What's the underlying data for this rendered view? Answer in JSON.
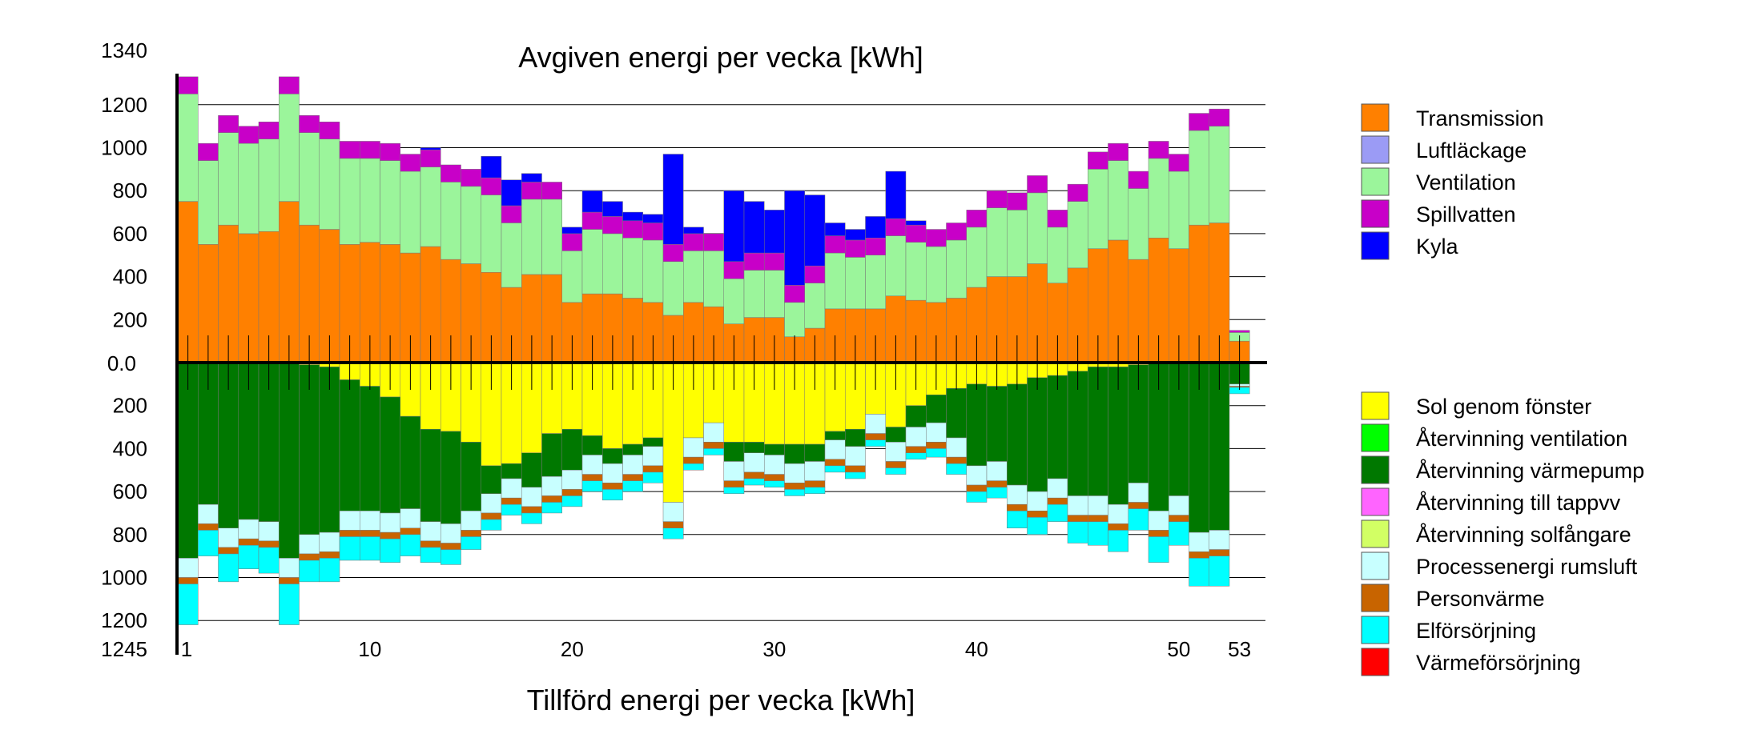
{
  "chart_data": {
    "type": "bar",
    "title": "Avgiven energi per vecka [kWh]",
    "xlabel": "Tillförd energi per vecka [kWh]",
    "y_top_label": "1340",
    "y_bottom_label": "1245",
    "y_zero_label": "0.0",
    "ylim_upper": [
      0,
      1340
    ],
    "ylim_lower": [
      0,
      1245
    ],
    "y_ticks_upper": [
      200,
      400,
      600,
      800,
      1000,
      1200
    ],
    "y_ticks_lower": [
      200,
      400,
      600,
      800,
      1000,
      1200
    ],
    "x_ticks": [
      {
        "week": 1,
        "label": "1"
      },
      {
        "week": 10,
        "label": "10"
      },
      {
        "week": 20,
        "label": "20"
      },
      {
        "week": 30,
        "label": "30"
      },
      {
        "week": 40,
        "label": "40"
      },
      {
        "week": 50,
        "label": "50"
      },
      {
        "week": 53,
        "label": "53"
      }
    ],
    "grid": true,
    "legend_placement": "right",
    "weeks": [
      1,
      2,
      3,
      4,
      5,
      6,
      7,
      8,
      9,
      10,
      11,
      12,
      13,
      14,
      15,
      16,
      17,
      18,
      19,
      20,
      21,
      22,
      23,
      24,
      25,
      26,
      27,
      28,
      29,
      30,
      31,
      32,
      33,
      34,
      35,
      36,
      37,
      38,
      39,
      40,
      41,
      42,
      43,
      44,
      45,
      46,
      47,
      48,
      49,
      50,
      51,
      52,
      53
    ],
    "series_upper": [
      {
        "name": "Transmission",
        "color": "#ff8000",
        "values": [
          750,
          550,
          640,
          600,
          610,
          750,
          640,
          620,
          550,
          560,
          550,
          510,
          540,
          480,
          460,
          420,
          350,
          410,
          410,
          280,
          320,
          320,
          300,
          280,
          220,
          280,
          260,
          180,
          210,
          210,
          120,
          160,
          250,
          250,
          250,
          310,
          290,
          280,
          300,
          350,
          400,
          400,
          460,
          370,
          440,
          530,
          570,
          480,
          580,
          530,
          640,
          650,
          100
        ]
      },
      {
        "name": "Luftläckage",
        "color": "#9b9bf5",
        "values": [
          0,
          0,
          0,
          0,
          0,
          0,
          0,
          0,
          0,
          0,
          0,
          0,
          0,
          0,
          0,
          0,
          0,
          0,
          0,
          0,
          0,
          0,
          0,
          0,
          0,
          0,
          0,
          0,
          0,
          0,
          0,
          0,
          0,
          0,
          0,
          0,
          0,
          0,
          0,
          0,
          0,
          0,
          0,
          0,
          0,
          0,
          0,
          0,
          0,
          0,
          0,
          0,
          0
        ]
      },
      {
        "name": "Ventilation",
        "color": "#9bf59b",
        "values": [
          500,
          390,
          430,
          420,
          430,
          500,
          430,
          420,
          400,
          390,
          390,
          380,
          370,
          360,
          360,
          360,
          300,
          350,
          350,
          240,
          300,
          280,
          280,
          290,
          250,
          240,
          260,
          210,
          220,
          220,
          160,
          210,
          260,
          240,
          250,
          280,
          270,
          260,
          270,
          280,
          320,
          310,
          330,
          260,
          310,
          370,
          370,
          330,
          370,
          360,
          440,
          450,
          40
        ]
      },
      {
        "name": "Spillvatten",
        "color": "#c800c8",
        "values": [
          80,
          80,
          80,
          80,
          80,
          80,
          80,
          80,
          80,
          80,
          80,
          80,
          80,
          80,
          80,
          80,
          80,
          80,
          80,
          80,
          80,
          80,
          80,
          80,
          80,
          80,
          80,
          80,
          80,
          80,
          80,
          80,
          80,
          80,
          80,
          80,
          80,
          80,
          80,
          80,
          80,
          80,
          80,
          80,
          80,
          80,
          80,
          80,
          80,
          80,
          80,
          80,
          10
        ]
      },
      {
        "name": "Kyla",
        "color": "#0000ff",
        "values": [
          0,
          0,
          0,
          0,
          0,
          0,
          0,
          0,
          0,
          0,
          0,
          0,
          10,
          0,
          0,
          100,
          120,
          40,
          0,
          30,
          100,
          70,
          40,
          40,
          420,
          30,
          0,
          330,
          240,
          200,
          440,
          330,
          60,
          50,
          100,
          220,
          20,
          0,
          0,
          0,
          0,
          0,
          0,
          0,
          0,
          0,
          0,
          0,
          0,
          0,
          0,
          0,
          0
        ]
      }
    ],
    "series_lower": [
      {
        "name": "Sol genom fönster",
        "color": "#ffff00",
        "values": [
          0,
          0,
          0,
          0,
          0,
          0,
          10,
          20,
          80,
          110,
          160,
          250,
          310,
          320,
          370,
          480,
          470,
          420,
          330,
          310,
          340,
          400,
          380,
          350,
          650,
          350,
          280,
          370,
          370,
          380,
          380,
          380,
          320,
          310,
          240,
          300,
          200,
          150,
          120,
          100,
          110,
          100,
          70,
          60,
          40,
          20,
          20,
          10,
          0,
          0,
          0,
          0,
          0
        ]
      },
      {
        "name": "Återvinning ventilation",
        "color": "#00ff00",
        "values": [
          0,
          0,
          0,
          0,
          0,
          0,
          0,
          0,
          0,
          0,
          0,
          0,
          0,
          0,
          0,
          0,
          0,
          0,
          0,
          0,
          0,
          0,
          0,
          0,
          0,
          0,
          0,
          0,
          0,
          0,
          0,
          0,
          0,
          0,
          0,
          0,
          0,
          0,
          0,
          0,
          0,
          0,
          0,
          0,
          0,
          0,
          0,
          0,
          0,
          0,
          0,
          0,
          0
        ]
      },
      {
        "name": "Återvinning värmepump",
        "color": "#007800",
        "values": [
          910,
          660,
          770,
          730,
          740,
          910,
          790,
          770,
          610,
          580,
          540,
          430,
          430,
          430,
          320,
          130,
          70,
          160,
          200,
          190,
          90,
          70,
          50,
          40,
          0,
          0,
          0,
          90,
          50,
          50,
          90,
          80,
          40,
          80,
          0,
          70,
          100,
          130,
          230,
          380,
          350,
          470,
          530,
          480,
          580,
          600,
          640,
          550,
          690,
          620,
          790,
          780,
          100
        ]
      },
      {
        "name": "Återvinning till tappvv",
        "color": "#ff64ff",
        "values": [
          0,
          0,
          0,
          0,
          0,
          0,
          0,
          0,
          0,
          0,
          0,
          0,
          0,
          0,
          0,
          0,
          0,
          0,
          0,
          0,
          0,
          0,
          0,
          0,
          0,
          0,
          0,
          0,
          0,
          0,
          0,
          0,
          0,
          0,
          0,
          0,
          0,
          0,
          0,
          0,
          0,
          0,
          0,
          0,
          0,
          0,
          0,
          0,
          0,
          0,
          0,
          0,
          0
        ]
      },
      {
        "name": "Återvinning solfångare",
        "color": "#d2ff64",
        "values": [
          0,
          0,
          0,
          0,
          0,
          0,
          0,
          0,
          0,
          0,
          0,
          0,
          0,
          0,
          0,
          0,
          0,
          0,
          0,
          0,
          0,
          0,
          0,
          0,
          0,
          0,
          0,
          0,
          0,
          0,
          0,
          0,
          0,
          0,
          0,
          0,
          0,
          0,
          0,
          0,
          0,
          0,
          0,
          0,
          0,
          0,
          0,
          0,
          0,
          0,
          0,
          0,
          0
        ]
      },
      {
        "name": "Processenergi rumsluft",
        "color": "#c8ffff",
        "values": [
          90,
          90,
          90,
          90,
          90,
          90,
          90,
          90,
          90,
          90,
          90,
          90,
          90,
          90,
          90,
          90,
          90,
          90,
          90,
          90,
          90,
          90,
          90,
          90,
          90,
          90,
          90,
          90,
          90,
          90,
          90,
          90,
          90,
          90,
          90,
          90,
          90,
          90,
          90,
          90,
          90,
          90,
          90,
          90,
          90,
          90,
          90,
          90,
          90,
          90,
          90,
          90,
          10
        ]
      },
      {
        "name": "Personvärme",
        "color": "#c86400",
        "values": [
          30,
          30,
          30,
          30,
          30,
          30,
          30,
          30,
          30,
          30,
          30,
          30,
          30,
          30,
          30,
          30,
          30,
          30,
          30,
          30,
          30,
          30,
          30,
          30,
          30,
          30,
          30,
          30,
          30,
          30,
          30,
          30,
          30,
          30,
          30,
          30,
          30,
          30,
          30,
          30,
          30,
          30,
          30,
          30,
          30,
          30,
          30,
          30,
          30,
          30,
          30,
          30,
          5
        ]
      },
      {
        "name": "Elförsörjning",
        "color": "#00ffff",
        "values": [
          190,
          120,
          130,
          110,
          120,
          190,
          100,
          110,
          110,
          110,
          110,
          100,
          70,
          70,
          60,
          50,
          50,
          50,
          50,
          50,
          50,
          50,
          50,
          50,
          50,
          30,
          30,
          30,
          30,
          30,
          30,
          30,
          30,
          30,
          30,
          30,
          30,
          40,
          50,
          50,
          50,
          80,
          80,
          80,
          100,
          110,
          100,
          100,
          120,
          110,
          130,
          140,
          30
        ]
      },
      {
        "name": "Värmeförsörjning",
        "color": "#ff0000",
        "values": [
          0,
          0,
          0,
          0,
          0,
          0,
          0,
          0,
          0,
          0,
          0,
          0,
          0,
          0,
          0,
          0,
          0,
          0,
          0,
          0,
          0,
          0,
          0,
          0,
          0,
          0,
          0,
          0,
          0,
          0,
          0,
          0,
          0,
          0,
          0,
          0,
          0,
          0,
          0,
          0,
          0,
          0,
          0,
          0,
          0,
          0,
          0,
          0,
          0,
          0,
          0,
          0,
          0
        ]
      }
    ]
  }
}
